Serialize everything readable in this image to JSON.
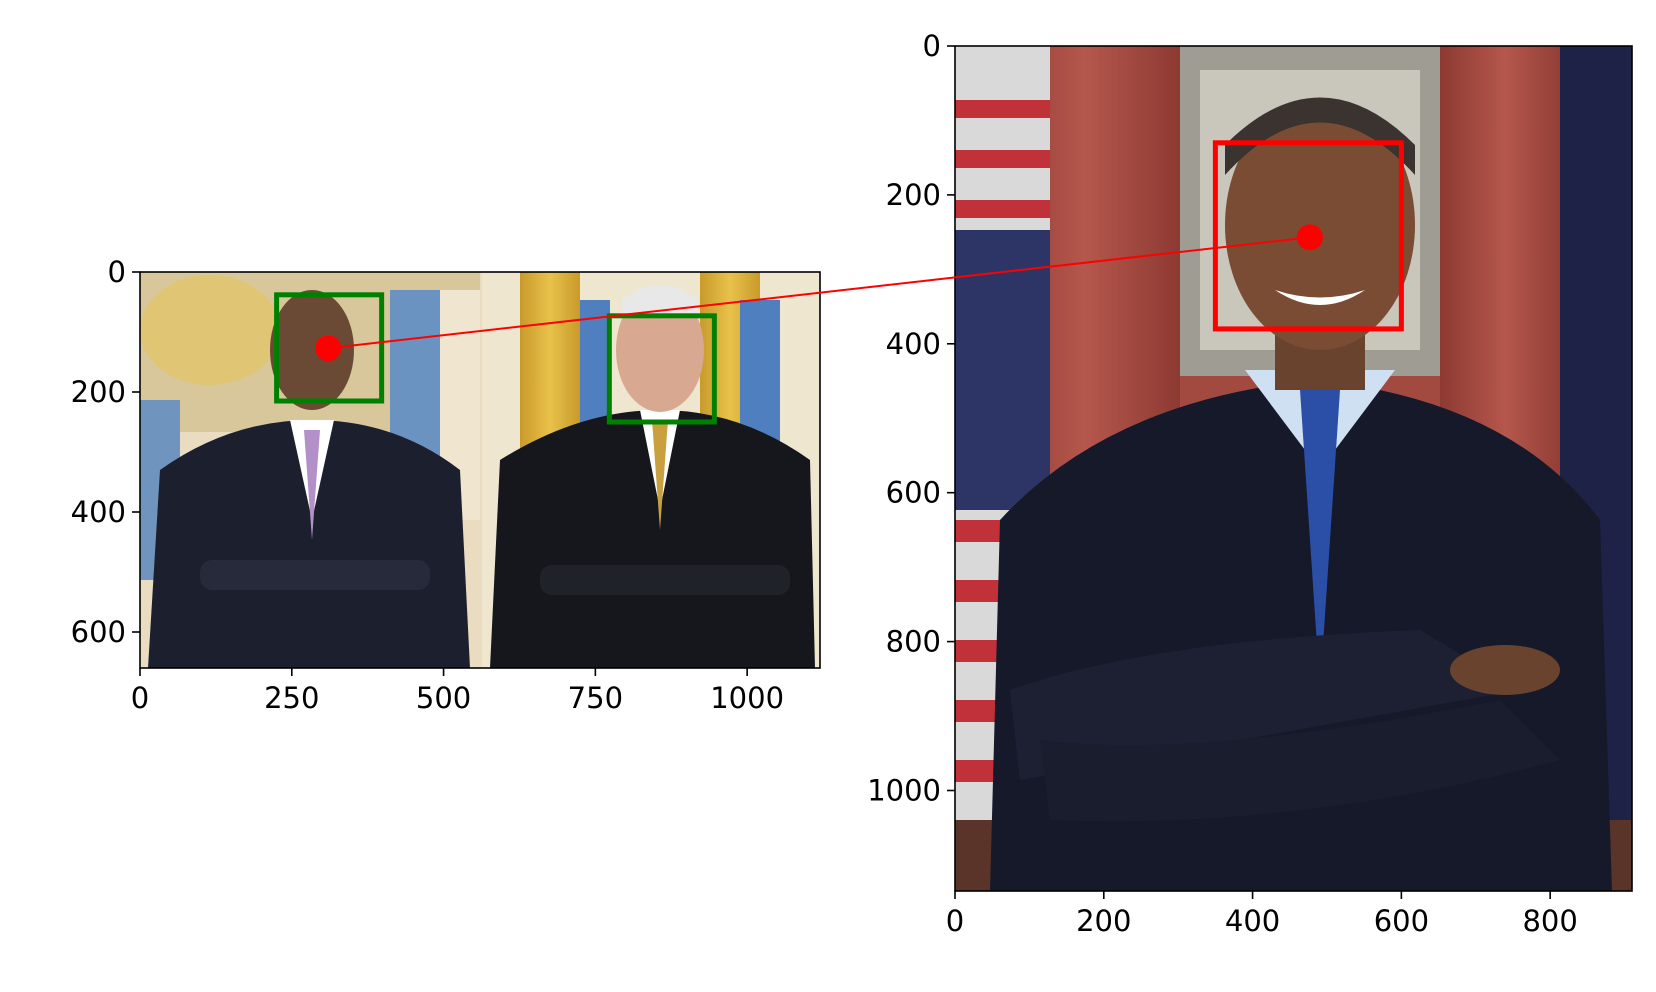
{
  "chart_data": [
    {
      "type": "image",
      "title": "",
      "xlabel": "",
      "ylabel": "",
      "xlim": [
        0,
        1120
      ],
      "ylim": [
        660,
        0
      ],
      "xticks": [
        0,
        250,
        500,
        750,
        1000
      ],
      "yticks": [
        0,
        200,
        400,
        600
      ],
      "xtick_labels": [
        "0",
        "250",
        "500",
        "750",
        "1000"
      ],
      "ytick_labels": [
        "0",
        "200",
        "400",
        "600"
      ],
      "image_content": "photo of two men in suits with arms crossed",
      "boxes": [
        {
          "x0": 225,
          "y0": 38,
          "x1": 398,
          "y1": 215,
          "color": "#008000"
        },
        {
          "x0": 773,
          "y0": 73,
          "x1": 946,
          "y1": 250,
          "color": "#008000"
        }
      ],
      "points": [
        {
          "x": 310,
          "y": 127,
          "color": "#ff0000"
        }
      ]
    },
    {
      "type": "image",
      "title": "",
      "xlabel": "",
      "ylabel": "",
      "xlim": [
        0,
        910
      ],
      "ylim": [
        1135,
        0
      ],
      "xticks": [
        0,
        200,
        400,
        600,
        800
      ],
      "yticks": [
        0,
        200,
        400,
        600,
        800,
        1000
      ],
      "xtick_labels": [
        "0",
        "200",
        "400",
        "600",
        "800"
      ],
      "ytick_labels": [
        "0",
        "200",
        "400",
        "600",
        "800",
        "1000"
      ],
      "image_content": "portrait photo of a man in a suit with arms crossed in front of flags and red curtains",
      "boxes": [
        {
          "x0": 350,
          "y0": 130,
          "x1": 600,
          "y1": 380,
          "color": "#ff0000"
        }
      ],
      "points": [
        {
          "x": 477,
          "y": 257,
          "color": "#ff0000"
        }
      ]
    }
  ],
  "connection": {
    "from": {
      "axes": 0,
      "x": 310,
      "y": 127
    },
    "to": {
      "axes": 1,
      "x": 477,
      "y": 257
    },
    "color": "#ff0000"
  }
}
